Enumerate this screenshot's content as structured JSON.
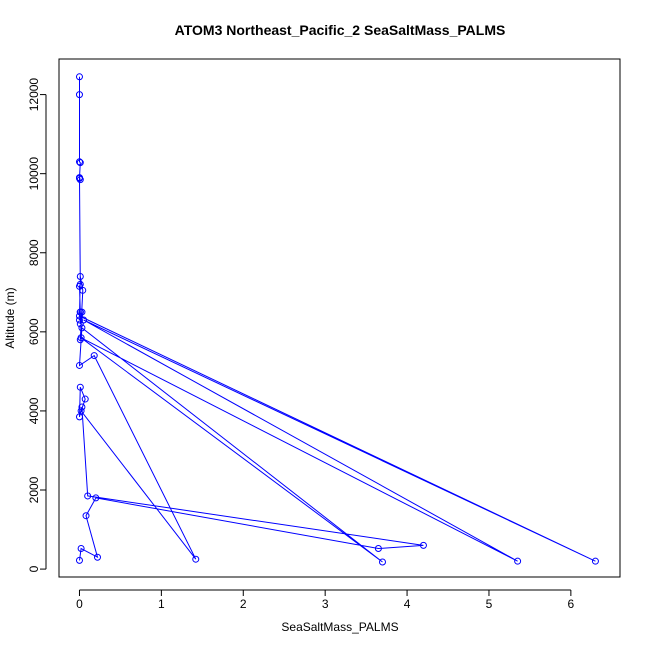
{
  "chart_data": {
    "type": "line",
    "title": "ATOM3 Northeast_Pacific_2 SeaSaltMass_PALMS",
    "xlabel": "SeaSaltMass_PALMS",
    "ylabel": "Altitude (m)",
    "xlim": [
      -0.25,
      6.6
    ],
    "ylim": [
      -200,
      12900
    ],
    "x_ticks": [
      0,
      1,
      2,
      3,
      4,
      5,
      6
    ],
    "y_ticks": [
      0,
      2000,
      4000,
      6000,
      8000,
      10000,
      12000
    ],
    "grid": false,
    "legend": "none",
    "line_color": "#0000ff",
    "marker": "open-circle",
    "series": [
      {
        "x": [
          0.0,
          0.0,
          0.0,
          0.01,
          0.0,
          0.01,
          0.0,
          0.01,
          0.0,
          0.01,
          0.0,
          0.01,
          0.01,
          0.03,
          0.01,
          0.04,
          0.01,
          0.0,
          6.3,
          0.05,
          5.35,
          0.02,
          3.7,
          0.03,
          0.0,
          0.18,
          1.42,
          0.02,
          0.07,
          0.01,
          0.0,
          0.03,
          0.1,
          4.2,
          3.65,
          0.2,
          0.08,
          0.22,
          0.02,
          0.0
        ],
        "y": [
          12450,
          12000,
          10300,
          10280,
          9900,
          9850,
          9880,
          7200,
          7150,
          6500,
          6300,
          6500,
          6200,
          6500,
          5800,
          7050,
          7400,
          6400,
          200,
          6300,
          200,
          5850,
          180,
          6100,
          5150,
          5400,
          250,
          4000,
          4300,
          4600,
          3850,
          4100,
          1850,
          600,
          520,
          1800,
          1350,
          300,
          520,
          220
        ]
      }
    ]
  }
}
